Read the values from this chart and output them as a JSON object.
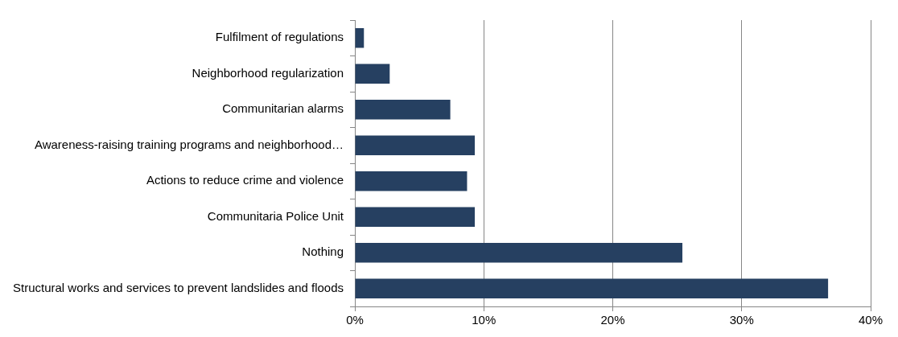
{
  "chart_data": {
    "type": "bar",
    "orientation": "horizontal",
    "categories": [
      "Fulfilment of regulations",
      "Neighborhood regularization",
      "Communitarian alarms",
      "Awareness-raising training programs and neighborhood…",
      "Actions to reduce crime and violence",
      "Communitaria Police Unit",
      "Nothing",
      "Structural works and services to prevent landslides and floods"
    ],
    "values": [
      0.7,
      2.7,
      7.4,
      9.3,
      8.7,
      9.3,
      25.4,
      36.7
    ],
    "color": "#264061",
    "xlim": [
      0,
      40
    ],
    "xticks": [
      {
        "value": 0,
        "label": "0%"
      },
      {
        "value": 10,
        "label": "10%"
      },
      {
        "value": 20,
        "label": "20%"
      },
      {
        "value": 30,
        "label": "30%"
      },
      {
        "value": 40,
        "label": "40%"
      }
    ],
    "grid": "x",
    "legend": false
  }
}
